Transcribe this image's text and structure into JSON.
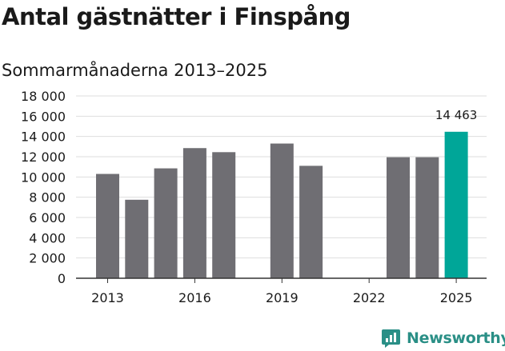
{
  "title": "Antal gästnätter i Finspång",
  "subtitle": "Sommarmånaderna 2013–2025",
  "brand": {
    "name": "Newsworthy",
    "icon": "newsworthy-logo-icon",
    "color": "#2a8f86"
  },
  "colors": {
    "bar": "#6f6e73",
    "highlight": "#00a698",
    "grid": "#dedede",
    "axis": "#333333"
  },
  "chart_data": {
    "type": "bar",
    "title": "Antal gästnätter i Finspång",
    "subtitle": "Sommarmånaderna 2013–2025",
    "xlabel": "",
    "ylabel": "",
    "categories": [
      "2013",
      "2014",
      "2015",
      "2016",
      "2017",
      "2018",
      "2019",
      "2020",
      "2021",
      "2022",
      "2023",
      "2024",
      "2025"
    ],
    "values": [
      10300,
      7750,
      10850,
      12850,
      12450,
      null,
      13300,
      11100,
      null,
      null,
      11950,
      11950,
      14463
    ],
    "highlight_category": "2025",
    "data_labels": [
      {
        "category": "2025",
        "text": "14 463"
      }
    ],
    "x_tick_labels": [
      "2013",
      "2016",
      "2019",
      "2022",
      "2025"
    ],
    "y_tick_labels": [
      "0",
      "2 000",
      "4 000",
      "6 000",
      "8 000",
      "10 000",
      "12 000",
      "14 000",
      "16 000",
      "18 000"
    ],
    "ylim": [
      0,
      18000
    ],
    "grid": true,
    "legend": "none"
  }
}
